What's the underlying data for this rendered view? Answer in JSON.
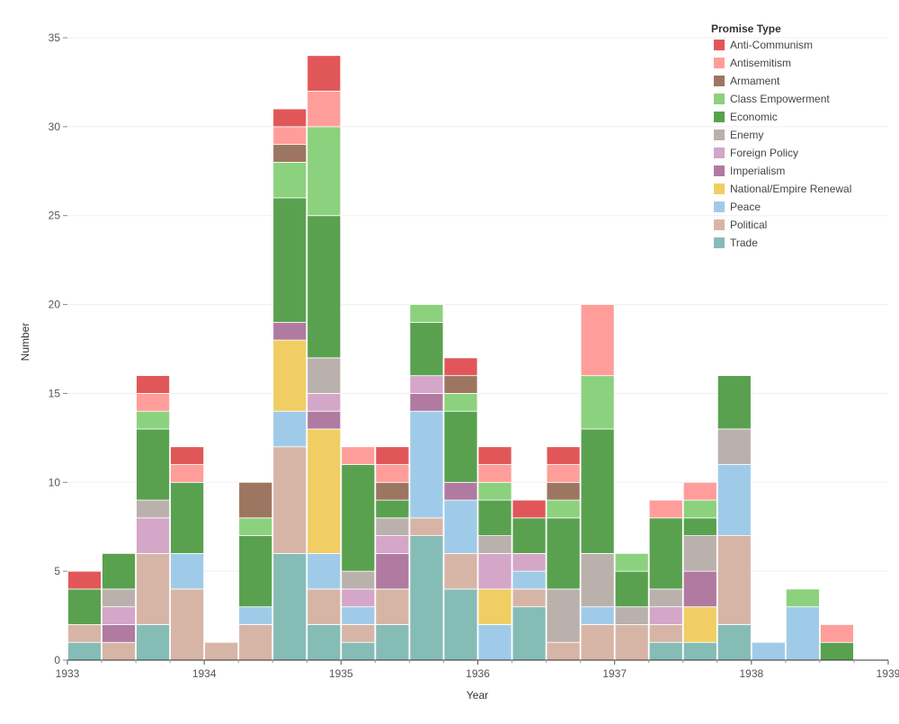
{
  "chart_data": {
    "type": "bar",
    "stacked": true,
    "x_axis": {
      "label": "Year",
      "range": [
        1933,
        1939
      ],
      "ticks": [
        "1933",
        "1934",
        "1935",
        "1936",
        "1937",
        "1938",
        "1939"
      ]
    },
    "y_axis": {
      "label": "Number",
      "range": [
        0,
        35
      ],
      "ticks": [
        "0",
        "5",
        "10",
        "15",
        "20",
        "25",
        "30",
        "35"
      ]
    },
    "grid": true,
    "legend": {
      "title": "Promise Type",
      "position": "top-right",
      "entries": [
        {
          "name": "Anti-Communism",
          "color": "#e15759"
        },
        {
          "name": "Antisemitism",
          "color": "#ff9d9a"
        },
        {
          "name": "Armament",
          "color": "#9c7660"
        },
        {
          "name": "Class Empowerment",
          "color": "#8cd17d"
        },
        {
          "name": "Economic",
          "color": "#59a14f"
        },
        {
          "name": "Enemy",
          "color": "#bab0ac"
        },
        {
          "name": "Foreign Policy",
          "color": "#d4a6c8"
        },
        {
          "name": "Imperialism",
          "color": "#b07aa1"
        },
        {
          "name": "National/Empire Renewal",
          "color": "#f1ce63"
        },
        {
          "name": "Peace",
          "color": "#a0cbe8"
        },
        {
          "name": "Political",
          "color": "#d7b5a6"
        },
        {
          "name": "Trade",
          "color": "#86bcb6"
        }
      ]
    },
    "stack_order": [
      "Trade",
      "Political",
      "Peace",
      "National/Empire Renewal",
      "Imperialism",
      "Foreign Policy",
      "Enemy",
      "Economic",
      "Class Empowerment",
      "Armament",
      "Antisemitism",
      "Anti-Communism"
    ],
    "bins": [
      {
        "start": 1933.0,
        "end": 1933.25,
        "values": {
          "Trade": 1,
          "Political": 1,
          "Economic": 2,
          "Anti-Communism": 1
        }
      },
      {
        "start": 1933.25,
        "end": 1933.5,
        "values": {
          "Political": 1,
          "Imperialism": 1,
          "Foreign Policy": 1,
          "Enemy": 1,
          "Economic": 2
        }
      },
      {
        "start": 1933.5,
        "end": 1933.75,
        "values": {
          "Trade": 2,
          "Political": 4,
          "Foreign Policy": 2,
          "Enemy": 1,
          "Economic": 4,
          "Class Empowerment": 1,
          "Antisemitism": 1,
          "Anti-Communism": 1
        }
      },
      {
        "start": 1933.75,
        "end": 1934.0,
        "values": {
          "Political": 4,
          "Peace": 2,
          "Economic": 4,
          "Antisemitism": 1,
          "Anti-Communism": 1
        }
      },
      {
        "start": 1934.0,
        "end": 1934.25,
        "values": {
          "Political": 1
        }
      },
      {
        "start": 1934.25,
        "end": 1934.5,
        "values": {
          "Political": 2,
          "Peace": 1,
          "Economic": 4,
          "Class Empowerment": 1,
          "Armament": 2
        }
      },
      {
        "start": 1934.5,
        "end": 1934.75,
        "values": {
          "Trade": 6,
          "Political": 6,
          "Peace": 2,
          "National/Empire Renewal": 4,
          "Imperialism": 1,
          "Economic": 7,
          "Class Empowerment": 2,
          "Armament": 1,
          "Antisemitism": 1,
          "Anti-Communism": 1
        }
      },
      {
        "start": 1934.75,
        "end": 1935.0,
        "values": {
          "Trade": 2,
          "Political": 2,
          "Peace": 2,
          "National/Empire Renewal": 7,
          "Imperialism": 1,
          "Foreign Policy": 1,
          "Enemy": 2,
          "Economic": 8,
          "Class Empowerment": 5,
          "Antisemitism": 2,
          "Anti-Communism": 2
        }
      },
      {
        "start": 1935.0,
        "end": 1935.25,
        "values": {
          "Trade": 1,
          "Political": 1,
          "Peace": 1,
          "Foreign Policy": 1,
          "Enemy": 1,
          "Economic": 6,
          "Antisemitism": 1
        }
      },
      {
        "start": 1935.25,
        "end": 1935.5,
        "values": {
          "Trade": 2,
          "Political": 2,
          "Imperialism": 2,
          "Foreign Policy": 1,
          "Enemy": 1,
          "Economic": 1,
          "Armament": 1,
          "Antisemitism": 1,
          "Anti-Communism": 1
        }
      },
      {
        "start": 1935.5,
        "end": 1935.75,
        "values": {
          "Trade": 7,
          "Political": 1,
          "Peace": 6,
          "Imperialism": 1,
          "Foreign Policy": 1,
          "Economic": 3,
          "Class Empowerment": 1
        }
      },
      {
        "start": 1935.75,
        "end": 1936.0,
        "values": {
          "Trade": 4,
          "Political": 2,
          "Peace": 3,
          "Imperialism": 1,
          "Economic": 4,
          "Class Empowerment": 1,
          "Armament": 1,
          "Anti-Communism": 1
        }
      },
      {
        "start": 1936.0,
        "end": 1936.25,
        "values": {
          "Peace": 2,
          "National/Empire Renewal": 2,
          "Foreign Policy": 2,
          "Enemy": 1,
          "Economic": 2,
          "Class Empowerment": 1,
          "Antisemitism": 1,
          "Anti-Communism": 1
        }
      },
      {
        "start": 1936.25,
        "end": 1936.5,
        "values": {
          "Trade": 3,
          "Political": 1,
          "Peace": 1,
          "Foreign Policy": 1,
          "Economic": 2,
          "Anti-Communism": 1
        }
      },
      {
        "start": 1936.5,
        "end": 1936.75,
        "values": {
          "Political": 1,
          "Enemy": 3,
          "Economic": 4,
          "Class Empowerment": 1,
          "Armament": 1,
          "Antisemitism": 1,
          "Anti-Communism": 1
        }
      },
      {
        "start": 1936.75,
        "end": 1937.0,
        "values": {
          "Political": 2,
          "Peace": 1,
          "Enemy": 3,
          "Economic": 7,
          "Class Empowerment": 3,
          "Antisemitism": 4
        }
      },
      {
        "start": 1937.0,
        "end": 1937.25,
        "values": {
          "Political": 2,
          "Enemy": 1,
          "Economic": 2,
          "Class Empowerment": 1
        }
      },
      {
        "start": 1937.25,
        "end": 1937.5,
        "values": {
          "Trade": 1,
          "Political": 1,
          "Foreign Policy": 1,
          "Enemy": 1,
          "Economic": 4,
          "Antisemitism": 1
        }
      },
      {
        "start": 1937.5,
        "end": 1937.75,
        "values": {
          "Trade": 1,
          "National/Empire Renewal": 2,
          "Imperialism": 2,
          "Enemy": 2,
          "Economic": 1,
          "Class Empowerment": 1,
          "Antisemitism": 1
        }
      },
      {
        "start": 1937.75,
        "end": 1938.0,
        "values": {
          "Trade": 2,
          "Political": 5,
          "Peace": 4,
          "Enemy": 2,
          "Economic": 3
        }
      },
      {
        "start": 1938.0,
        "end": 1938.25,
        "values": {
          "Peace": 1
        }
      },
      {
        "start": 1938.25,
        "end": 1938.5,
        "values": {
          "Peace": 3,
          "Class Empowerment": 1
        }
      },
      {
        "start": 1938.5,
        "end": 1938.75,
        "values": {
          "Economic": 1,
          "Antisemitism": 1
        }
      }
    ]
  }
}
